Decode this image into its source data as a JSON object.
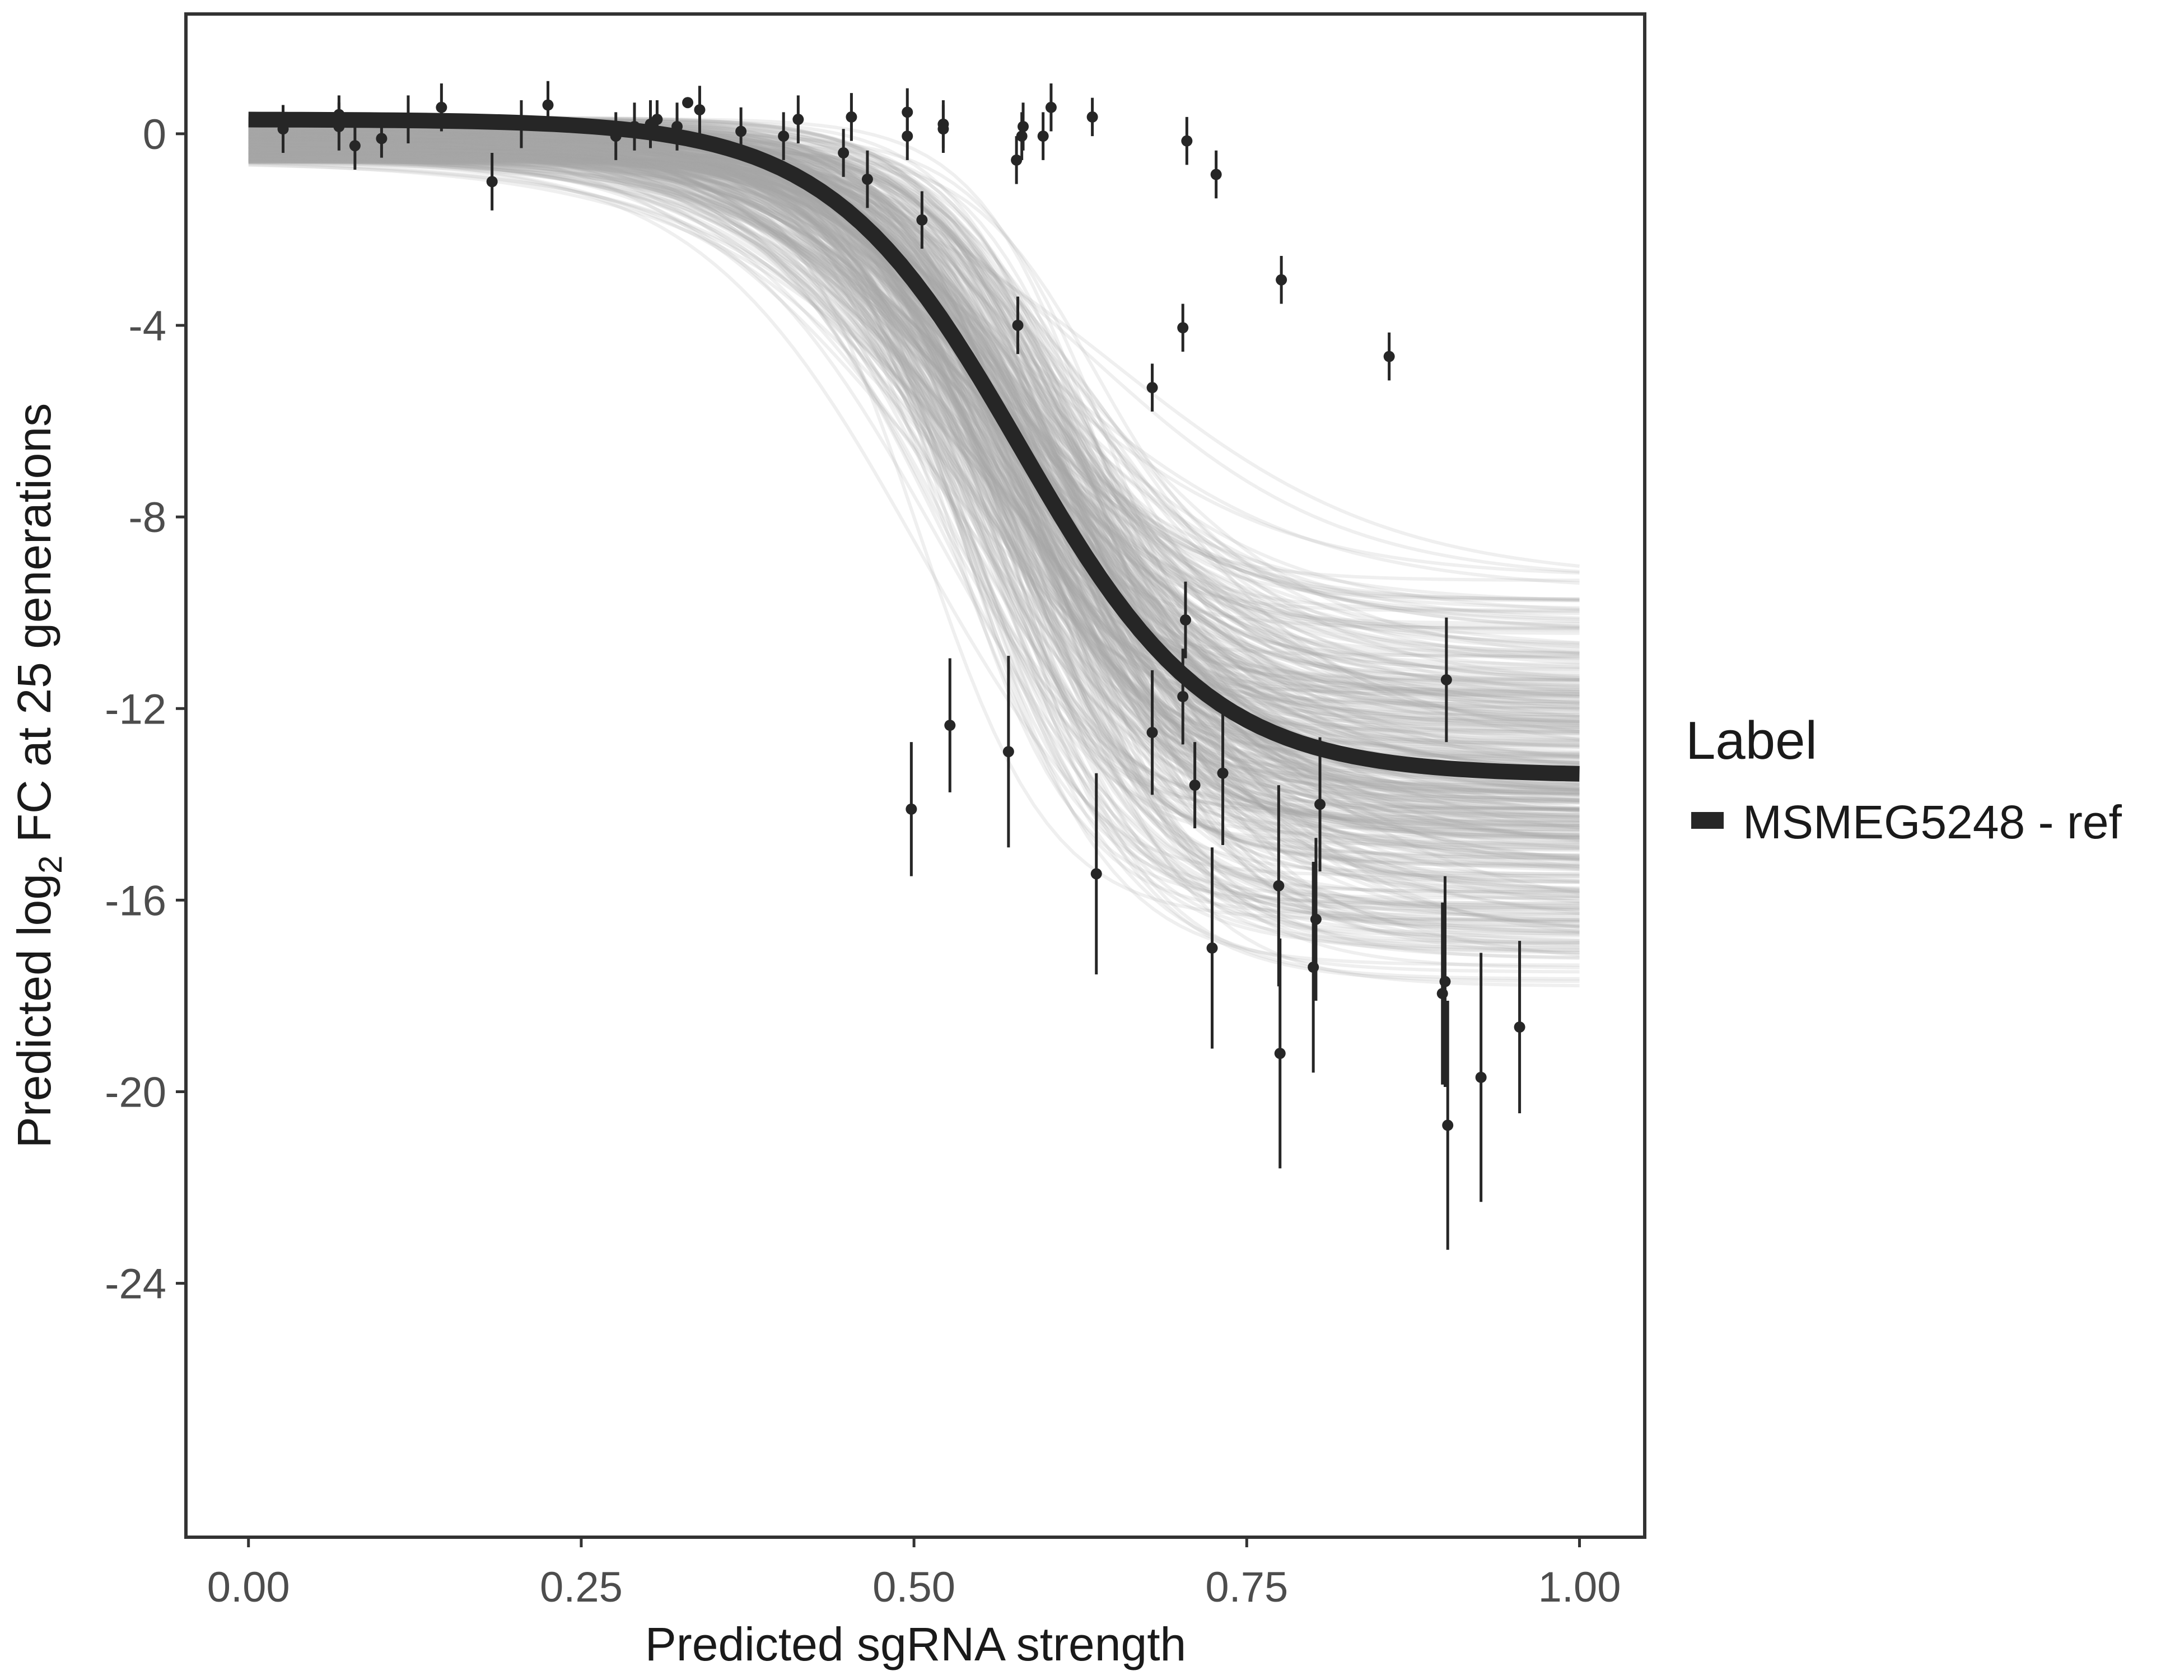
{
  "chart_data": {
    "type": "scatter",
    "xlabel": "Predicted sgRNA strength",
    "ylabel_prefix": "Predicted  log",
    "ylabel_sub": "2",
    "ylabel_suffix": " FC at 25 generations",
    "xlim": [
      -0.047,
      1.049
    ],
    "ylim": [
      -29.3,
      2.5
    ],
    "x_ticks": [
      0,
      0.25,
      0.5,
      0.75,
      1.0
    ],
    "x_tick_labels": [
      "0.00",
      "0.25",
      "0.50",
      "0.75",
      "1.00"
    ],
    "y_ticks": [
      0,
      -4,
      -8,
      -12,
      -16,
      -20,
      -24
    ],
    "y_tick_labels": [
      "0",
      "-4",
      "-8",
      "-12",
      "-16",
      "-20",
      "-24"
    ],
    "grid": false,
    "legend": {
      "title": "Label",
      "position": "right",
      "entries": [
        "MSMEG5248 - ref"
      ],
      "color": "#262626"
    },
    "fit_curve": {
      "type": "logistic",
      "top": 0.3,
      "bottom": -13.4,
      "midpoint": 0.58,
      "slope": 14,
      "color": "#262626"
    },
    "posterior_samples": {
      "count": 400,
      "top_range": [
        -0.6,
        0.35
      ],
      "bottom_range": [
        -18.6,
        -8.8
      ],
      "midpoint_range": [
        0.5,
        0.66
      ],
      "slope_range": [
        9,
        22
      ],
      "color": "#a6a6a6"
    },
    "points": [
      {
        "x": 0.026,
        "y": 0.1,
        "err": 0.5
      },
      {
        "x": 0.068,
        "y": 0.4,
        "err": 0.4
      },
      {
        "x": 0.068,
        "y": 0.15,
        "err": 0.5
      },
      {
        "x": 0.08,
        "y": -0.25,
        "err": 0.5
      },
      {
        "x": 0.1,
        "y": -0.1,
        "err": 0.4
      },
      {
        "x": 0.12,
        "y": 0.3,
        "err": 0.5
      },
      {
        "x": 0.145,
        "y": 0.55,
        "err": 0.5
      },
      {
        "x": 0.183,
        "y": -1.0,
        "err": 0.6
      },
      {
        "x": 0.205,
        "y": 0.2,
        "err": 0.5
      },
      {
        "x": 0.225,
        "y": 0.6,
        "err": 0.5
      },
      {
        "x": 0.276,
        "y": -0.05,
        "err": 0.5
      },
      {
        "x": 0.29,
        "y": 0.15,
        "err": 0.5
      },
      {
        "x": 0.302,
        "y": 0.2,
        "err": 0.5
      },
      {
        "x": 0.307,
        "y": 0.3,
        "err": 0.4
      },
      {
        "x": 0.322,
        "y": 0.15,
        "err": 0.5
      },
      {
        "x": 0.33,
        "y": 0.65,
        "err": 0.1
      },
      {
        "x": 0.339,
        "y": 0.5,
        "err": 0.5
      },
      {
        "x": 0.37,
        "y": 0.05,
        "err": 0.5
      },
      {
        "x": 0.402,
        "y": -0.05,
        "err": 0.5
      },
      {
        "x": 0.413,
        "y": 0.3,
        "err": 0.5
      },
      {
        "x": 0.447,
        "y": -0.4,
        "err": 0.5
      },
      {
        "x": 0.453,
        "y": 0.35,
        "err": 0.5
      },
      {
        "x": 0.465,
        "y": -0.95,
        "err": 0.6
      },
      {
        "x": 0.495,
        "y": 0.45,
        "err": 0.5
      },
      {
        "x": 0.495,
        "y": -0.05,
        "err": 0.5
      },
      {
        "x": 0.498,
        "y": -14.1,
        "err": 1.4
      },
      {
        "x": 0.506,
        "y": -1.8,
        "err": 0.6
      },
      {
        "x": 0.522,
        "y": 0.2,
        "err": 0.5
      },
      {
        "x": 0.522,
        "y": 0.1,
        "err": 0.5
      },
      {
        "x": 0.527,
        "y": -12.35,
        "err": 1.4
      },
      {
        "x": 0.571,
        "y": -12.9,
        "err": 2.0
      },
      {
        "x": 0.577,
        "y": -0.55,
        "err": 0.5
      },
      {
        "x": 0.578,
        "y": -4.0,
        "err": 0.6
      },
      {
        "x": 0.581,
        "y": -0.05,
        "err": 0.5
      },
      {
        "x": 0.582,
        "y": 0.15,
        "err": 0.5
      },
      {
        "x": 0.597,
        "y": -0.05,
        "err": 0.5
      },
      {
        "x": 0.603,
        "y": 0.55,
        "err": 0.5
      },
      {
        "x": 0.634,
        "y": 0.35,
        "err": 0.4
      },
      {
        "x": 0.637,
        "y": -15.45,
        "err": 2.1
      },
      {
        "x": 0.679,
        "y": -12.5,
        "err": 1.3
      },
      {
        "x": 0.679,
        "y": -5.3,
        "err": 0.5
      },
      {
        "x": 0.702,
        "y": -4.05,
        "err": 0.5
      },
      {
        "x": 0.702,
        "y": -11.75,
        "err": 1.0
      },
      {
        "x": 0.704,
        "y": -10.15,
        "err": 0.8
      },
      {
        "x": 0.705,
        "y": -0.15,
        "err": 0.5
      },
      {
        "x": 0.711,
        "y": -13.6,
        "err": 0.9
      },
      {
        "x": 0.724,
        "y": -17.0,
        "err": 2.1
      },
      {
        "x": 0.727,
        "y": -0.85,
        "err": 0.5
      },
      {
        "x": 0.732,
        "y": -13.35,
        "err": 1.5
      },
      {
        "x": 0.774,
        "y": -15.7,
        "err": 2.1
      },
      {
        "x": 0.775,
        "y": -19.2,
        "err": 2.4
      },
      {
        "x": 0.776,
        "y": -3.05,
        "err": 0.5
      },
      {
        "x": 0.8,
        "y": -17.4,
        "err": 2.2
      },
      {
        "x": 0.802,
        "y": -16.4,
        "err": 1.7
      },
      {
        "x": 0.805,
        "y": -14.0,
        "err": 1.4
      },
      {
        "x": 0.857,
        "y": -4.65,
        "err": 0.5
      },
      {
        "x": 0.897,
        "y": -17.95,
        "err": 1.9
      },
      {
        "x": 0.899,
        "y": -17.7,
        "err": 2.2
      },
      {
        "x": 0.9,
        "y": -11.4,
        "err": 1.3
      },
      {
        "x": 0.901,
        "y": -20.7,
        "err": 2.6
      },
      {
        "x": 0.926,
        "y": -19.7,
        "err": 2.6
      },
      {
        "x": 0.955,
        "y": -18.65,
        "err": 1.8
      }
    ]
  }
}
